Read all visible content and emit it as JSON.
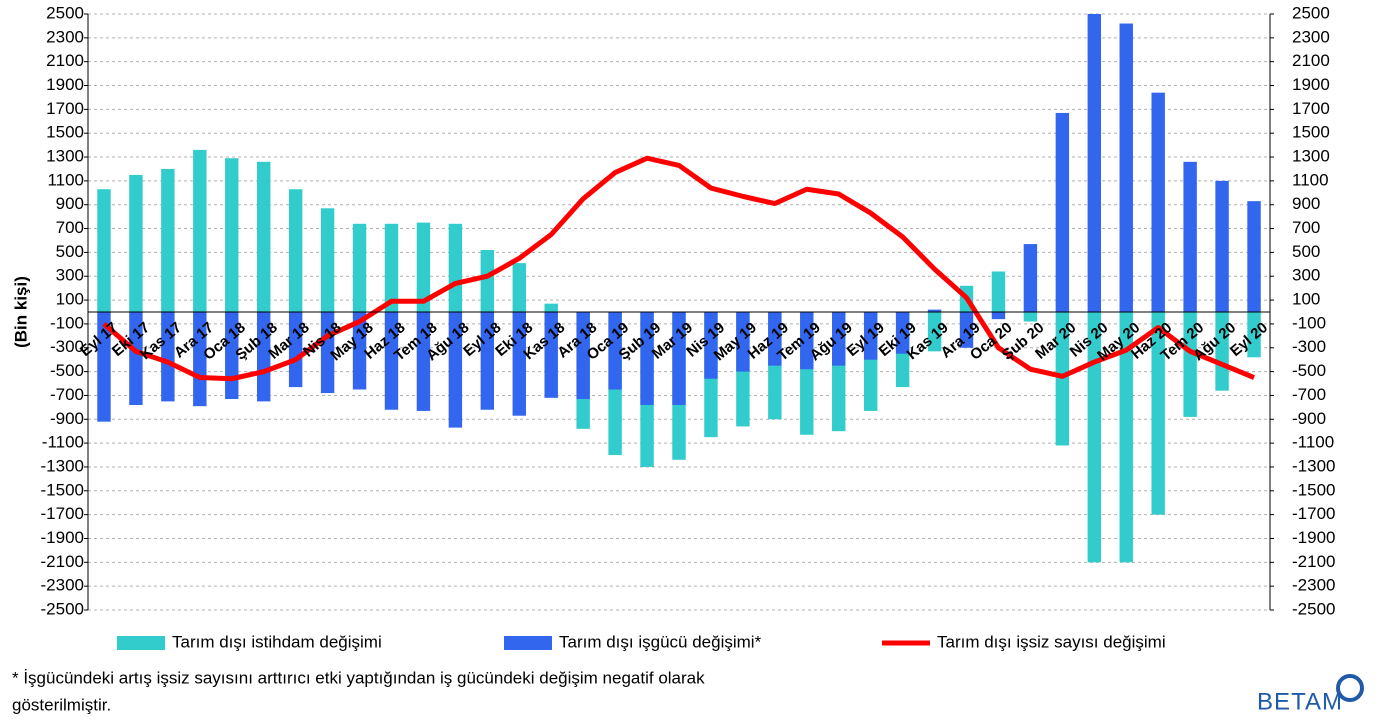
{
  "chart_data": {
    "type": "bar-line",
    "y_axis_label": "(Bin kişi)",
    "categories": [
      "Eyl 17",
      "Eki 17",
      "Kas 17",
      "Ara 17",
      "Oca 18",
      "Şub 18",
      "Mar 18",
      "Nis 18",
      "May 18",
      "Haz 18",
      "Tem 18",
      "Ağu 18",
      "Eyl 18",
      "Eki 18",
      "Kas 18",
      "Ara 18",
      "Oca 19",
      "Şub 19",
      "Mar 19",
      "Nis 19",
      "May 19",
      "Haz 19",
      "Tem 19",
      "Ağu 19",
      "Eyl 19",
      "Eki 19",
      "Kas 19",
      "Ara 19",
      "Oca 20",
      "Şub 20",
      "Mar 20",
      "Nis 20",
      "May 20",
      "Haz 20",
      "Tem 20",
      "Ağu 20",
      "Eyl 20"
    ],
    "series": [
      {
        "name": "Tarım dışı istihdam değişimi",
        "type": "bar",
        "color": "#33cccc",
        "values": [
          1030,
          1150,
          1200,
          1360,
          1290,
          1260,
          1030,
          870,
          740,
          740,
          750,
          740,
          520,
          410,
          70,
          -980,
          -1200,
          -1300,
          -1240,
          -1050,
          -960,
          -900,
          -1030,
          -1000,
          -830,
          -630,
          -330,
          220,
          340,
          -80,
          -1120,
          -2100,
          -2100,
          -1700,
          -880,
          -660,
          -380
        ]
      },
      {
        "name": "Tarım dışı işgücü değişimi*",
        "type": "bar",
        "color": "#3366ee",
        "values": [
          -920,
          -780,
          -750,
          -790,
          -730,
          -750,
          -630,
          -680,
          -650,
          -820,
          -830,
          -970,
          -820,
          -870,
          -720,
          -730,
          -650,
          -780,
          -780,
          -560,
          -500,
          -450,
          -480,
          -450,
          -400,
          -350,
          20,
          -300,
          -60,
          570,
          1670,
          2500,
          2420,
          1840,
          1260,
          1100,
          930
        ]
      },
      {
        "name": "Tarım dışı işsiz sayısı değişimi",
        "type": "line",
        "color": "#ff0000",
        "values": [
          -100,
          -330,
          -420,
          -550,
          -560,
          -500,
          -400,
          -200,
          -80,
          90,
          90,
          240,
          300,
          450,
          650,
          950,
          1170,
          1290,
          1230,
          1040,
          970,
          910,
          1030,
          990,
          830,
          630,
          360,
          120,
          -300,
          -480,
          -540,
          -420,
          -320,
          -130,
          -330,
          -440,
          -550
        ]
      }
    ],
    "ylim": [
      -2500,
      2500
    ],
    "yticks": [
      2500,
      2300,
      2100,
      1900,
      1700,
      1500,
      1300,
      1100,
      900,
      700,
      500,
      300,
      100,
      -100,
      -300,
      -500,
      -700,
      -900,
      -1100,
      -1300,
      -1500,
      -1700,
      -1900,
      -2100,
      -2300,
      -2500
    ],
    "y2lim": [
      -2500,
      2500
    ],
    "y2ticks": [
      2500,
      2300,
      2100,
      1900,
      1700,
      1500,
      1300,
      1100,
      900,
      700,
      500,
      300,
      100,
      -100,
      -300,
      -500,
      -700,
      -900,
      -1100,
      -1300,
      -1500,
      -1700,
      -1900,
      -2100,
      -2300,
      -2500
    ],
    "grid": true,
    "footnote": [
      "* İşgücündeki artış işsiz sayısını arttırıcı etki yaptığından iş gücündeki değişim negatif olarak",
      "gösterilmiştir."
    ],
    "logo": "BETAM"
  }
}
